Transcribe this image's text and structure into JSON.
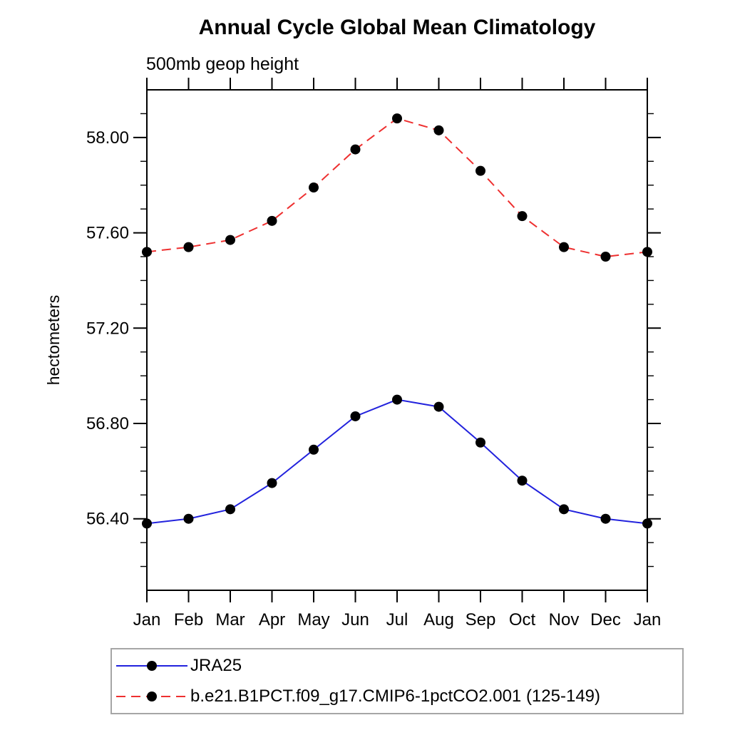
{
  "header": {
    "title": "Annual Cycle Global Mean Climatology",
    "subtitle": "500mb geop height"
  },
  "chart_data": {
    "type": "line",
    "title": "Annual Cycle Global Mean Climatology",
    "subtitle": "500mb geop height",
    "xlabel": "",
    "ylabel": "hectometers",
    "x": [
      "Jan",
      "Feb",
      "Mar",
      "Apr",
      "May",
      "Jun",
      "Jul",
      "Aug",
      "Sep",
      "Oct",
      "Nov",
      "Dec",
      "Jan"
    ],
    "ylim": [
      56.1,
      58.2
    ],
    "ytick_major_labels": [
      "56.40",
      "56.80",
      "57.20",
      "57.60",
      "58.00"
    ],
    "ytick_major_values": [
      56.4,
      56.8,
      57.2,
      57.6,
      58.0
    ],
    "ytick_minor_step": 0.1,
    "grid": false,
    "legend_position": "bottom-left boxed",
    "marker": "filled-circle",
    "marker_color": "#000000",
    "frame_color": "#000000",
    "series": [
      {
        "name": "JRA25",
        "color": "#2222dd",
        "line_style": "solid",
        "values": [
          56.38,
          56.4,
          56.44,
          56.55,
          56.69,
          56.83,
          56.9,
          56.87,
          56.72,
          56.56,
          56.44,
          56.4,
          56.38
        ]
      },
      {
        "name": "b.e21.B1PCT.f09_g17.CMIP6-1pctCO2.001 (125-149)",
        "color": "#ee3030",
        "line_style": "dashed",
        "values": [
          57.52,
          57.54,
          57.57,
          57.65,
          57.79,
          57.95,
          58.08,
          58.03,
          57.86,
          57.67,
          57.54,
          57.5,
          57.52
        ]
      }
    ]
  }
}
